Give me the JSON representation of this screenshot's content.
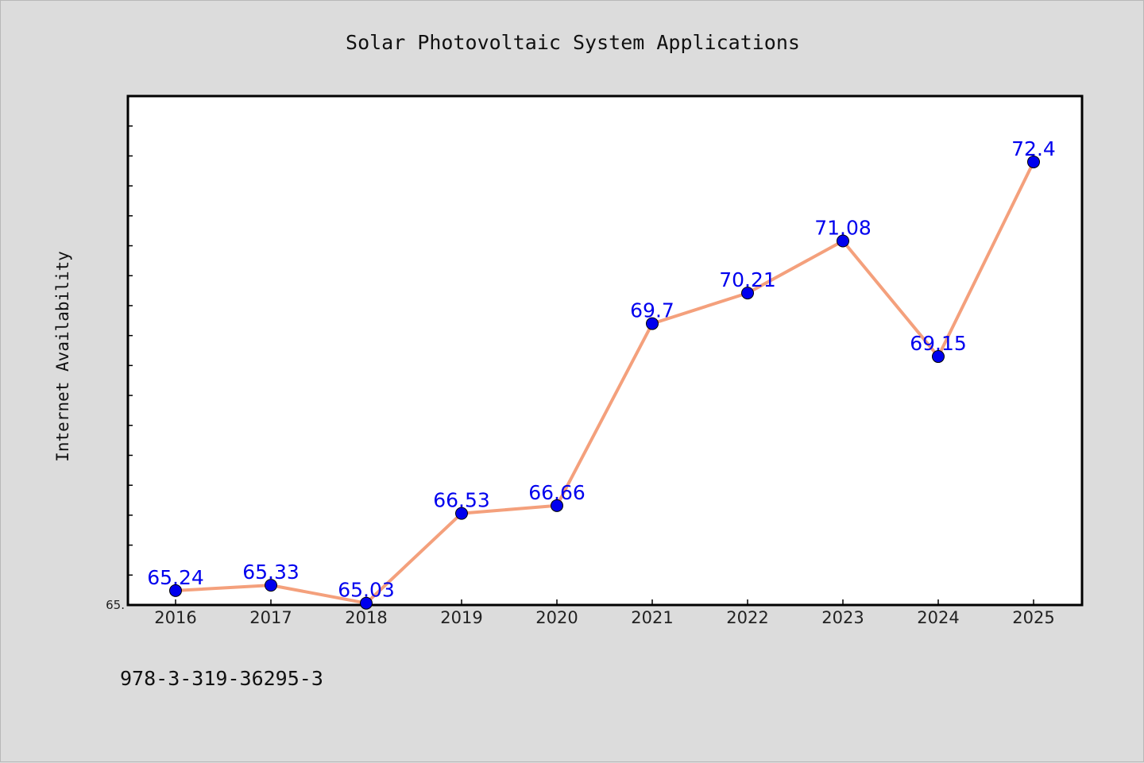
{
  "chart_data": {
    "type": "line",
    "title": "Solar Photovoltaic System Applications",
    "xlabel": "",
    "ylabel": "Internet Availability",
    "categories": [
      "2016",
      "2017",
      "2018",
      "2019",
      "2020",
      "2021",
      "2022",
      "2023",
      "2024",
      "2025"
    ],
    "series": [
      {
        "values": [
          65.24,
          65.33,
          65.03,
          66.53,
          66.66,
          69.7,
          70.21,
          71.08,
          69.15,
          72.4
        ],
        "data_labels": [
          "65.24",
          "65.33",
          "65.03",
          "66.53",
          "66.66",
          "69.7",
          "70.21",
          "71.08",
          "69.15",
          "72.4"
        ]
      }
    ],
    "ylim": [
      65.0,
      73.5
    ],
    "y_tick_label_shown": "65.",
    "grid": false,
    "legend": "none",
    "colors": {
      "line": "#f4a07c",
      "marker": "#0000ee",
      "data_label": "#0000ee",
      "plot_background": "#ffffff",
      "figure_background": "#dcdcdc"
    }
  },
  "footer_note": "978-3-319-36295-3"
}
